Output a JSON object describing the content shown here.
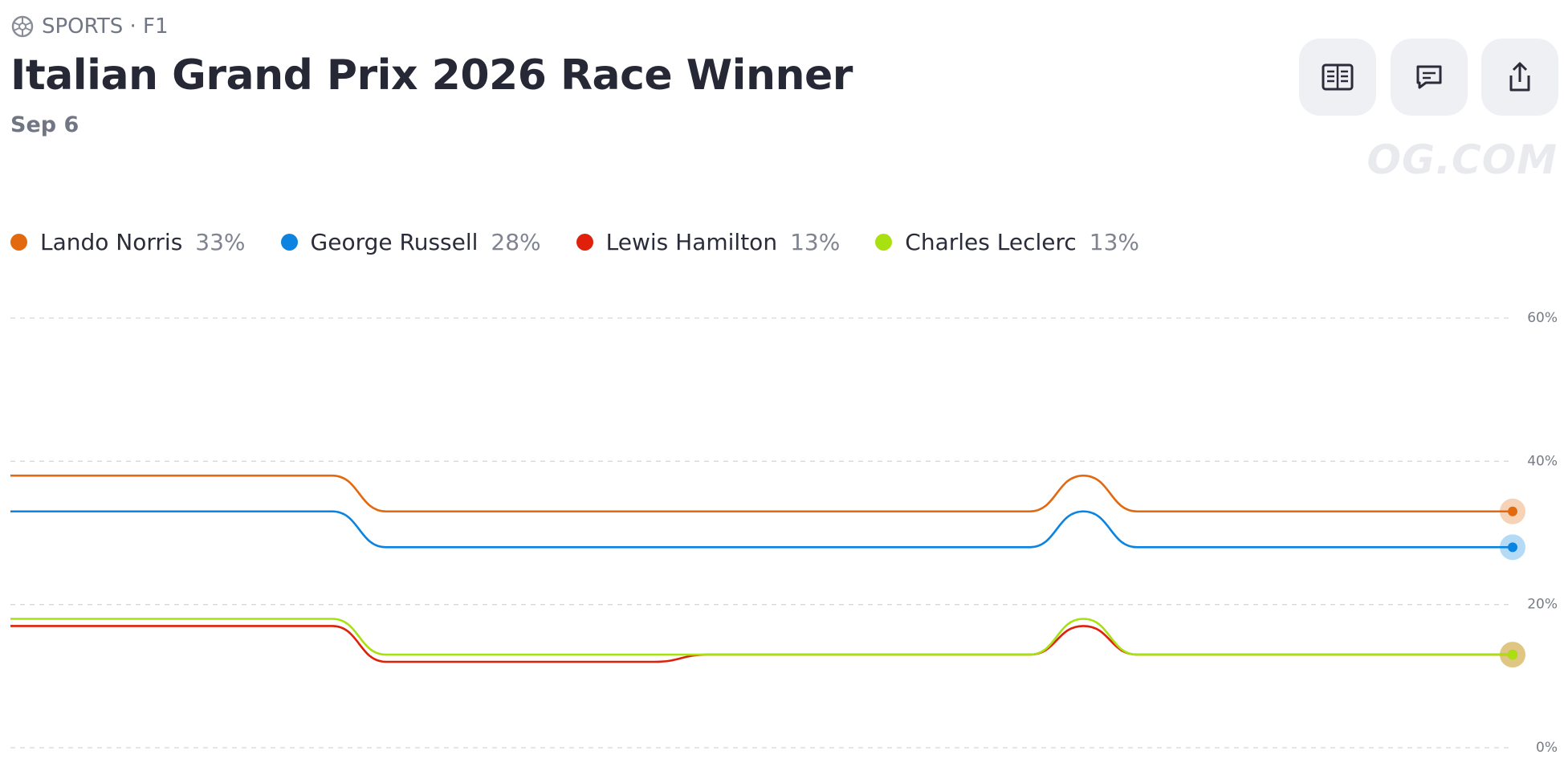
{
  "header": {
    "category": "SPORTS · F1",
    "title": "Italian Grand Prix 2026 Race Winner",
    "date": "Sep 6",
    "watermark": "OG.COM"
  },
  "chart_data": {
    "type": "line",
    "categories": [
      null,
      null,
      null,
      null,
      null,
      null,
      null,
      null,
      null,
      null,
      null,
      null,
      null,
      null,
      null,
      null,
      null,
      null,
      null,
      null,
      null,
      null,
      null,
      null,
      null,
      null,
      null,
      null,
      null
    ],
    "ylim": [
      0,
      60
    ],
    "yticks": [
      {
        "value": 0,
        "label": "0%"
      },
      {
        "value": 20,
        "label": "20%"
      },
      {
        "value": 40,
        "label": "40%"
      },
      {
        "value": 60,
        "label": "60%"
      }
    ],
    "grid": true,
    "series": [
      {
        "name": "Lando Norris",
        "color": "#e2690f",
        "legend_value": "33%",
        "values": [
          38,
          38,
          38,
          38,
          38,
          38,
          38,
          33,
          33,
          33,
          33,
          33,
          33,
          33,
          33,
          33,
          33,
          33,
          33,
          33,
          38,
          33,
          33,
          33,
          33,
          33,
          33,
          33,
          33
        ]
      },
      {
        "name": "George Russell",
        "color": "#0a84e0",
        "legend_value": "28%",
        "values": [
          33,
          33,
          33,
          33,
          33,
          33,
          33,
          28,
          28,
          28,
          28,
          28,
          28,
          28,
          28,
          28,
          28,
          28,
          28,
          28,
          33,
          28,
          28,
          28,
          28,
          28,
          28,
          28,
          28
        ]
      },
      {
        "name": "Lewis Hamilton",
        "color": "#e0200a",
        "legend_value": "13%",
        "values": [
          17,
          17,
          17,
          17,
          17,
          17,
          17,
          12,
          12,
          12,
          12,
          12,
          12,
          13,
          13,
          13,
          13,
          13,
          13,
          13,
          17,
          13,
          13,
          13,
          13,
          13,
          13,
          13,
          13
        ]
      },
      {
        "name": "Charles Leclerc",
        "color": "#a8e010",
        "legend_value": "13%",
        "values": [
          18,
          18,
          18,
          18,
          18,
          18,
          18,
          13,
          13,
          13,
          13,
          13,
          13,
          13,
          13,
          13,
          13,
          13,
          13,
          13,
          18,
          13,
          13,
          13,
          13,
          13,
          13,
          13,
          13
        ]
      }
    ]
  }
}
